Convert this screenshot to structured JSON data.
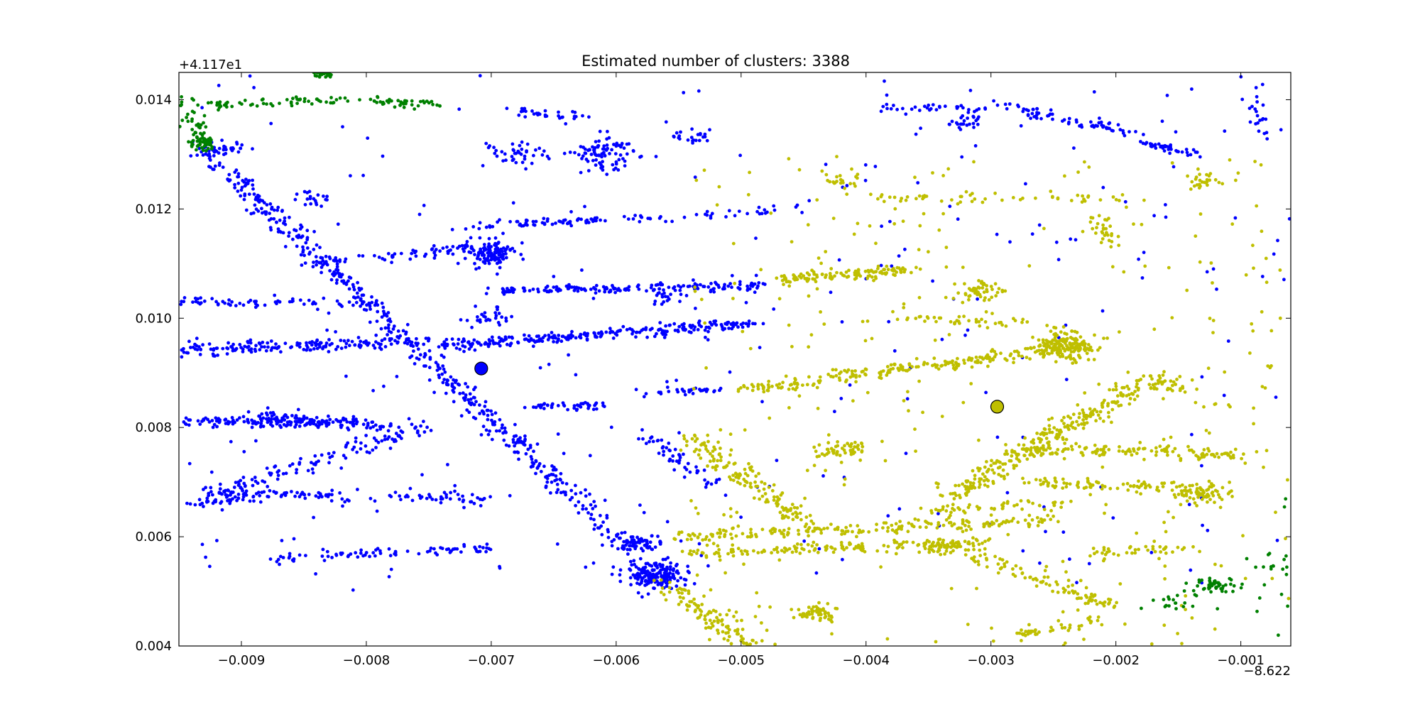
{
  "chart_data": {
    "type": "scatter",
    "title": "Estimated number of clusters: 3388",
    "xlabel": "",
    "ylabel": "",
    "x_offset_label": "−8.622",
    "y_offset_label": "+4.117e1",
    "xlim": [
      -0.0095,
      -0.0006
    ],
    "ylim": [
      0.004,
      0.0145
    ],
    "xticks": [
      -0.009,
      -0.008,
      -0.007,
      -0.006,
      -0.005,
      -0.004,
      -0.003,
      -0.002,
      -0.001
    ],
    "xtick_labels": [
      "−0.009",
      "−0.008",
      "−0.007",
      "−0.006",
      "−0.005",
      "−0.004",
      "−0.003",
      "−0.002",
      "−0.001"
    ],
    "yticks": [
      0.004,
      0.006,
      0.008,
      0.01,
      0.012,
      0.014
    ],
    "ytick_labels": [
      "0.004",
      "0.006",
      "0.008",
      "0.010",
      "0.012",
      "0.014"
    ],
    "grid": false,
    "legend": "none",
    "colors": {
      "blue": "#0000ff",
      "yellow": "#bfbf00",
      "green": "#008000",
      "edge": "#000000"
    },
    "series": [
      {
        "color": "#0000ff",
        "centroid": [
          -0.00708,
          0.00908
        ],
        "segments": [
          {
            "from": [
              -0.0093,
              0.0131
            ],
            "to": [
              -0.0056,
              0.0051
            ],
            "n": 520,
            "spread": 7e-05
          },
          {
            "from": [
              -0.0095,
              0.0094
            ],
            "to": [
              -0.0075,
              0.0096
            ],
            "n": 180,
            "spread": 6e-05
          },
          {
            "from": [
              -0.0074,
              0.0095
            ],
            "to": [
              -0.0049,
              0.0099
            ],
            "n": 260,
            "spread": 5e-05
          },
          {
            "from": [
              -0.0095,
              0.0081
            ],
            "to": [
              -0.0081,
              0.0081
            ],
            "n": 120,
            "spread": 5e-05
          },
          {
            "from": [
              -0.009,
              0.0082
            ],
            "to": [
              -0.0078,
              0.008
            ],
            "n": 90,
            "spread": 6e-05
          },
          {
            "from": [
              -0.0092,
              0.0068
            ],
            "to": [
              -0.0075,
              0.008
            ],
            "n": 120,
            "spread": 8e-05
          },
          {
            "from": [
              -0.0093,
              0.0068
            ],
            "to": [
              -0.007,
              0.0067
            ],
            "n": 110,
            "spread": 5e-05
          },
          {
            "from": [
              -0.0094,
              0.0066
            ],
            "to": [
              -0.0085,
              0.0068
            ],
            "n": 40,
            "spread": 4e-05
          },
          {
            "from": [
              -0.0088,
              0.0056
            ],
            "to": [
              -0.007,
              0.0058
            ],
            "n": 80,
            "spread": 4e-05
          },
          {
            "from": [
              -0.0095,
              0.0103
            ],
            "to": [
              -0.008,
              0.0103
            ],
            "n": 60,
            "spread": 5e-05
          },
          {
            "from": [
              -0.0084,
              0.011
            ],
            "to": [
              -0.0071,
              0.0113
            ],
            "n": 60,
            "spread": 5e-05
          },
          {
            "from": [
              -0.007,
              0.0105
            ],
            "to": [
              -0.0048,
              0.0106
            ],
            "n": 160,
            "spread": 4e-05
          },
          {
            "from": [
              -0.0071,
              0.0117
            ],
            "to": [
              -0.0061,
              0.0118
            ],
            "n": 60,
            "spread": 4e-05
          },
          {
            "from": [
              -0.006,
              0.0118
            ],
            "to": [
              -0.0045,
              0.012
            ],
            "n": 40,
            "spread": 4e-05
          },
          {
            "from": [
              -0.0093,
              0.0131
            ],
            "to": [
              -0.009,
              0.0131
            ],
            "n": 30,
            "spread": 5e-05
          },
          {
            "from": [
              -0.0067,
              0.0084
            ],
            "to": [
              -0.0061,
              0.0084
            ],
            "n": 45,
            "spread": 4e-05
          },
          {
            "from": [
              -0.0058,
              0.0086
            ],
            "to": [
              -0.0052,
              0.0087
            ],
            "n": 30,
            "spread": 4e-05
          },
          {
            "from": [
              -0.0058,
              0.0079
            ],
            "to": [
              -0.0052,
              0.0069
            ],
            "n": 50,
            "spread": 5e-05
          },
          {
            "from": [
              -0.0068,
              0.0138
            ],
            "to": [
              -0.0063,
              0.0137
            ],
            "n": 30,
            "spread": 5e-05
          },
          {
            "from": [
              -0.004,
              0.0138
            ],
            "to": [
              -0.0028,
              0.0139
            ],
            "n": 40,
            "spread": 4e-05
          },
          {
            "from": [
              -0.0028,
              0.0138
            ],
            "to": [
              -0.0018,
              0.0134
            ],
            "n": 60,
            "spread": 5e-05
          },
          {
            "from": [
              -0.0018,
              0.0132
            ],
            "to": [
              -0.0013,
              0.013
            ],
            "n": 40,
            "spread": 4e-05
          },
          {
            "from": [
              -0.001,
              0.0144
            ],
            "to": [
              -0.0007,
              0.0131
            ],
            "n": 20,
            "spread": 6e-05
          },
          {
            "from": [
              -0.0084,
              0.0122
            ],
            "to": [
              -0.0084,
              0.0122
            ],
            "n": 20,
            "spread": 8e-05
          }
        ],
        "clusters": [
          {
            "center": [
              -0.007,
              0.0112
            ],
            "n": 120,
            "spread": 0.00013
          },
          {
            "center": [
              -0.0061,
              0.013
            ],
            "n": 90,
            "spread": 0.00016
          },
          {
            "center": [
              -0.0068,
              0.013
            ],
            "n": 40,
            "spread": 0.00014
          },
          {
            "center": [
              -0.0057,
              0.0053
            ],
            "n": 180,
            "spread": 0.00013
          },
          {
            "center": [
              -0.0058,
              0.0059
            ],
            "n": 60,
            "spread": 0.0001
          },
          {
            "center": [
              -0.007,
              0.01
            ],
            "n": 30,
            "spread": 0.0001
          },
          {
            "center": [
              -0.0032,
              0.0136
            ],
            "n": 25,
            "spread": 8e-05
          },
          {
            "center": [
              -0.0054,
              0.0133
            ],
            "n": 20,
            "spread": 0.0001
          },
          {
            "center": [
              -0.0056,
              0.0104
            ],
            "n": 20,
            "spread": 0.0001
          }
        ],
        "scatter": {
          "n": 260,
          "xrange": [
            -0.0095,
            -0.0006
          ],
          "yrange": [
            0.005,
            0.0145
          ]
        }
      },
      {
        "color": "#bfbf00",
        "centroid": [
          -0.00295,
          0.00838
        ],
        "segments": [
          {
            "from": [
              -0.0047,
              0.0107
            ],
            "to": [
              -0.0036,
              0.0109
            ],
            "n": 120,
            "spread": 5e-05
          },
          {
            "from": [
              -0.005,
              0.0087
            ],
            "to": [
              -0.0022,
              0.0095
            ],
            "n": 230,
            "spread": 6e-05
          },
          {
            "from": [
              -0.0033,
              0.0068
            ],
            "to": [
              -0.0018,
              0.0088
            ],
            "n": 260,
            "spread": 8e-05
          },
          {
            "from": [
              -0.0054,
              0.0078
            ],
            "to": [
              -0.0045,
              0.0063
            ],
            "n": 140,
            "spread": 8e-05
          },
          {
            "from": [
              -0.0055,
              0.006
            ],
            "to": [
              -0.0025,
              0.0063
            ],
            "n": 200,
            "spread": 6e-05
          },
          {
            "from": [
              -0.0055,
              0.0057
            ],
            "to": [
              -0.003,
              0.0059
            ],
            "n": 150,
            "spread": 5e-05
          },
          {
            "from": [
              -0.0028,
              0.0076
            ],
            "to": [
              -0.001,
              0.0075
            ],
            "n": 130,
            "spread": 6e-05
          },
          {
            "from": [
              -0.0027,
              0.007
            ],
            "to": [
              -0.0015,
              0.0069
            ],
            "n": 80,
            "spread": 6e-05
          },
          {
            "from": [
              -0.0056,
              0.0051
            ],
            "to": [
              -0.0049,
              0.004
            ],
            "n": 110,
            "spread": 8e-05
          },
          {
            "from": [
              -0.0032,
              0.0057
            ],
            "to": [
              -0.002,
              0.0047
            ],
            "n": 100,
            "spread": 7e-05
          },
          {
            "from": [
              -0.0028,
              0.0042
            ],
            "to": [
              -0.0021,
              0.0045
            ],
            "n": 40,
            "spread": 5e-05
          },
          {
            "from": [
              -0.0035,
              0.0065
            ],
            "to": [
              -0.0024,
              0.0066
            ],
            "n": 50,
            "spread": 5e-05
          },
          {
            "from": [
              -0.004,
              0.0122
            ],
            "to": [
              -0.002,
              0.0122
            ],
            "n": 50,
            "spread": 4e-05
          },
          {
            "from": [
              -0.0021,
              0.0119
            ],
            "to": [
              -0.0021,
              0.0113
            ],
            "n": 30,
            "spread": 6e-05
          },
          {
            "from": [
              -0.0037,
              0.01
            ],
            "to": [
              -0.0027,
              0.0099
            ],
            "n": 40,
            "spread": 5e-05
          },
          {
            "from": [
              -0.0022,
              0.0057
            ],
            "to": [
              -0.0014,
              0.0058
            ],
            "n": 40,
            "spread": 5e-05
          }
        ],
        "clusters": [
          {
            "center": [
              -0.0024,
              0.0095
            ],
            "n": 150,
            "spread": 0.00014
          },
          {
            "center": [
              -0.0031,
              0.0105
            ],
            "n": 50,
            "spread": 0.00011
          },
          {
            "center": [
              -0.0042,
              0.0076
            ],
            "n": 50,
            "spread": 0.00011
          },
          {
            "center": [
              -0.0044,
              0.0046
            ],
            "n": 55,
            "spread": 9e-05
          },
          {
            "center": [
              -0.0034,
              0.0058
            ],
            "n": 40,
            "spread": 8e-05
          },
          {
            "center": [
              -0.0013,
              0.0068
            ],
            "n": 70,
            "spread": 0.00011
          },
          {
            "center": [
              -0.0016,
              0.0088
            ],
            "n": 35,
            "spread": 0.00011
          },
          {
            "center": [
              -0.0013,
              0.0125
            ],
            "n": 25,
            "spread": 8e-05
          },
          {
            "center": [
              -0.0042,
              0.0125
            ],
            "n": 20,
            "spread": 0.0001
          }
        ],
        "scatter": {
          "n": 320,
          "xrange": [
            -0.0054,
            -0.0006
          ],
          "yrange": [
            0.004,
            0.013
          ]
        }
      },
      {
        "color": "#008000",
        "centroid": null,
        "segments": [
          {
            "from": [
              -0.0093,
              0.0139
            ],
            "to": [
              -0.0081,
              0.014
            ],
            "n": 60,
            "spread": 4e-05
          },
          {
            "from": [
              -0.008,
              0.014
            ],
            "to": [
              -0.0074,
              0.0139
            ],
            "n": 40,
            "spread": 4e-05
          },
          {
            "from": [
              -0.0095,
              0.014
            ],
            "to": [
              -0.0093,
              0.0132
            ],
            "n": 50,
            "spread": 6e-05
          }
        ],
        "clusters": [
          {
            "center": [
              -0.0093,
              0.0132
            ],
            "n": 40,
            "spread": 6e-05
          },
          {
            "center": [
              -0.00835,
              0.0145
            ],
            "n": 30,
            "spread": 6e-05
          },
          {
            "center": [
              -0.0012,
              0.0051
            ],
            "n": 45,
            "spread": 9e-05
          },
          {
            "center": [
              -0.0015,
              0.0048
            ],
            "n": 20,
            "spread": 0.00012
          },
          {
            "center": [
              -0.0007,
              0.0055
            ],
            "n": 12,
            "spread": 0.00012
          }
        ],
        "scatter": {
          "n": 10,
          "xrange": [
            -0.0012,
            -0.0006
          ],
          "yrange": [
            0.004,
            0.007
          ]
        }
      }
    ]
  }
}
